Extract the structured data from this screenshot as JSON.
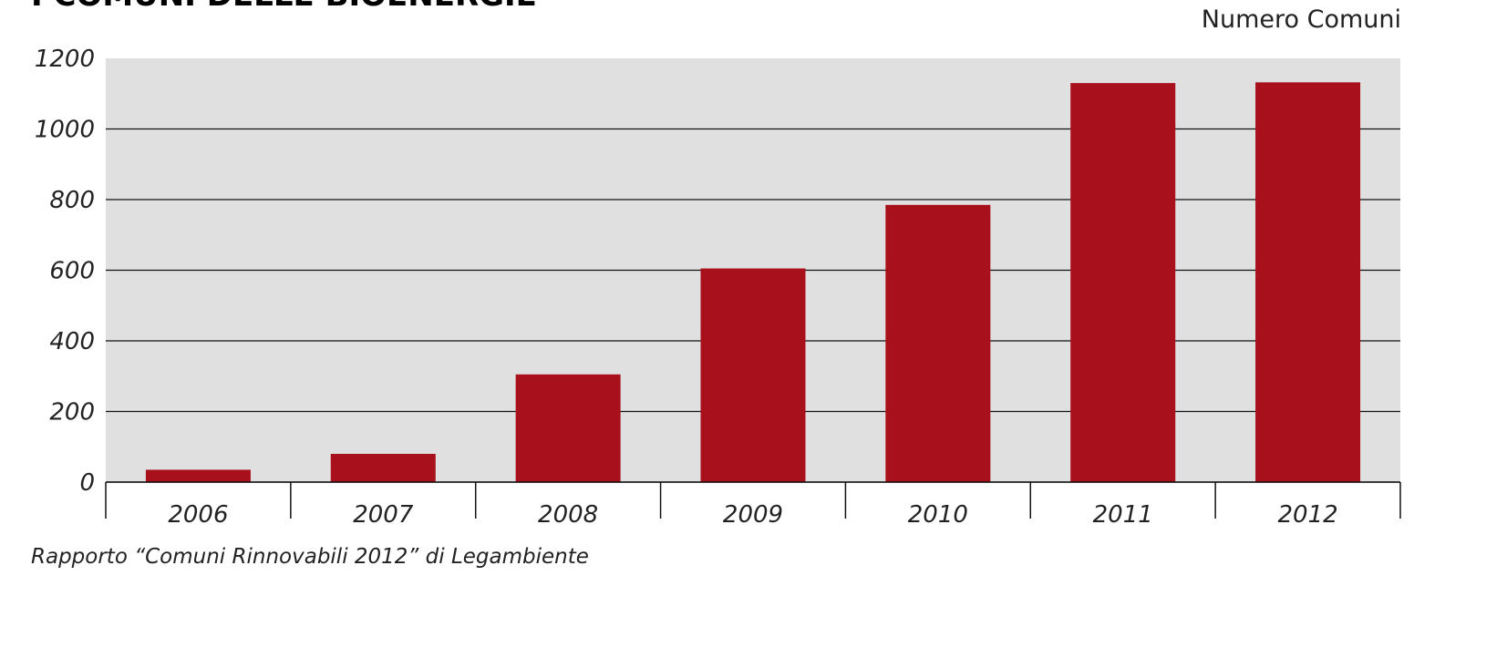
{
  "chart_data": {
    "type": "bar",
    "title": "I COMUNI DELLE BIOENERGIE",
    "ylabel": "Numero Comuni",
    "xlabel": "",
    "categories": [
      "2006",
      "2007",
      "2008",
      "2009",
      "2010",
      "2011",
      "2012"
    ],
    "values": [
      35,
      80,
      305,
      605,
      785,
      1130,
      1132
    ],
    "ylim": [
      0,
      1200
    ],
    "yticks": [
      0,
      200,
      400,
      600,
      800,
      1000,
      1200
    ],
    "grid": true,
    "source": "Rapporto “Comuni Rinnovabili 2012” di Legambiente",
    "colors": {
      "bar": "#a8101b",
      "plot_background": "#e0e0e0",
      "gridline": "#111111"
    }
  }
}
